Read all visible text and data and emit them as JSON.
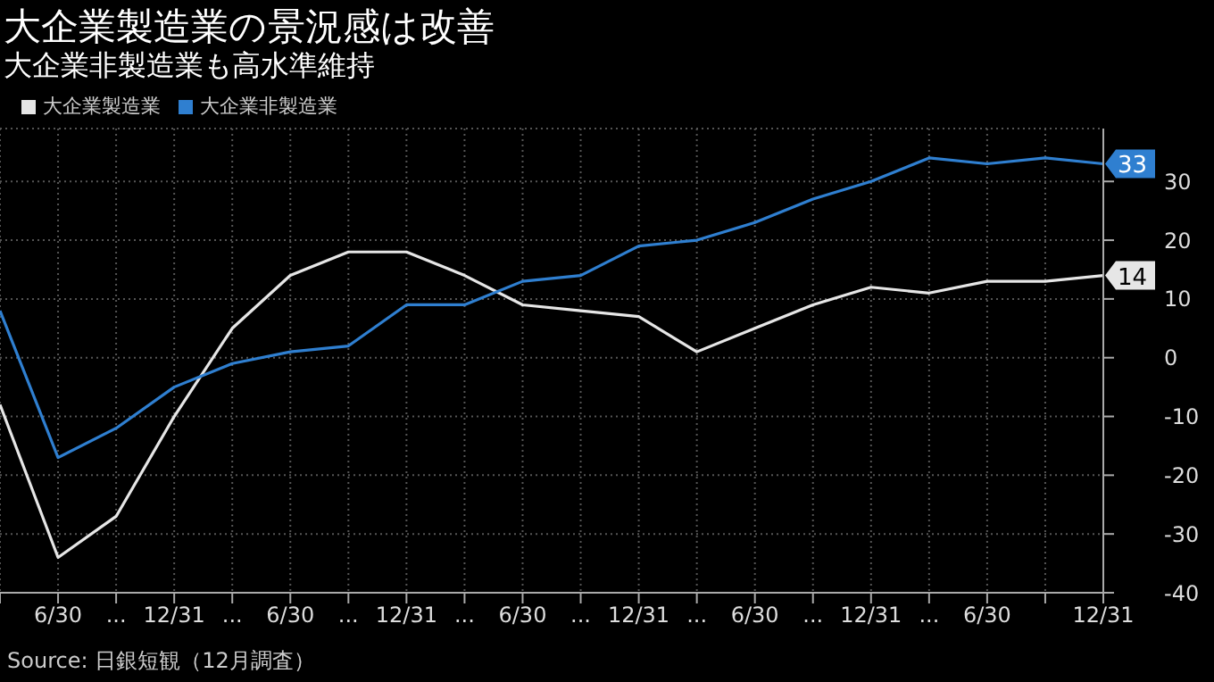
{
  "chart_data": {
    "type": "line",
    "title": "大企業製造業の景況感は改善",
    "subtitle": "大企業非製造業も高水準維持",
    "categories": [
      null,
      "6/30",
      "...",
      "12/31",
      "...",
      "6/30",
      "...",
      "12/31",
      "...",
      "6/30",
      "...",
      "12/31",
      "...",
      "6/30",
      "...",
      "12/31",
      "...",
      "6/30",
      null,
      "12/31"
    ],
    "series": [
      {
        "name": "大企業製造業",
        "color": "#e6e6e6",
        "values": [
          -8,
          -34,
          -27,
          -10,
          5,
          14,
          18,
          18,
          14,
          9,
          8,
          7,
          1,
          5,
          9,
          12,
          11,
          13,
          13,
          14
        ],
        "value_labels": [
          null,
          null,
          null,
          null,
          null,
          null,
          null,
          null,
          null,
          null,
          null,
          null,
          null,
          null,
          null,
          null,
          null,
          null,
          null,
          "14"
        ]
      },
      {
        "name": "大企業非製造業",
        "color": "#2f7fd0",
        "values": [
          8,
          -17,
          -12,
          -5,
          -1,
          1,
          2,
          9,
          9,
          13,
          14,
          19,
          20,
          23,
          27,
          30,
          34,
          33,
          34,
          33
        ],
        "value_labels": [
          null,
          null,
          null,
          null,
          null,
          null,
          null,
          null,
          null,
          null,
          null,
          null,
          null,
          null,
          null,
          null,
          null,
          null,
          null,
          "33"
        ]
      }
    ],
    "ylim": [
      -40,
      39
    ],
    "yticks": [
      -40,
      -30,
      -20,
      -10,
      0,
      10,
      20,
      30
    ],
    "grid": true,
    "legend": "top left",
    "marker": "none",
    "line_style": "solid",
    "annotations": [
      "Source: 日銀短観（12月調査）"
    ]
  }
}
